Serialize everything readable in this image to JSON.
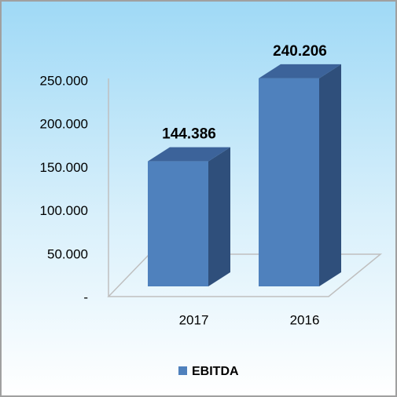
{
  "chart_data": {
    "type": "bar3d",
    "categories": [
      "2017",
      "2016"
    ],
    "series": [
      {
        "name": "EBITDA",
        "color": "#4f81bd",
        "values": [
          144386,
          240206
        ],
        "value_labels": [
          "144.386",
          "240.206"
        ]
      }
    ],
    "ylim": [
      0,
      250000
    ],
    "yticks": [
      {
        "value": 0,
        "label": "-"
      },
      {
        "value": 50000,
        "label": "50.000"
      },
      {
        "value": 100000,
        "label": "100.000"
      },
      {
        "value": 150000,
        "label": "150.000"
      },
      {
        "value": 200000,
        "label": "200.000"
      },
      {
        "value": 250000,
        "label": "250.000"
      }
    ],
    "legend": "bottom"
  }
}
